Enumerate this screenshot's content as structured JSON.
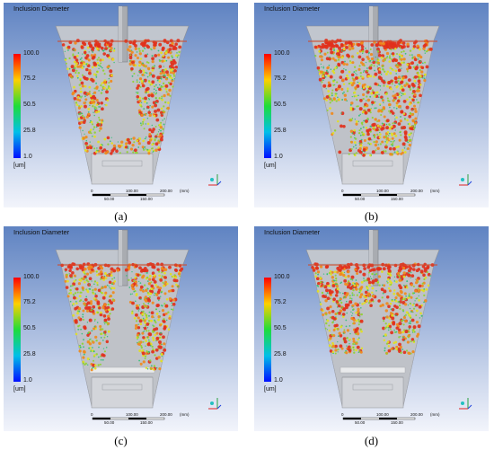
{
  "legend": {
    "title": "Inclusion Diameter",
    "ticks": [
      "100.0",
      "75.2",
      "50.5",
      "25.8",
      "1.0"
    ],
    "unit": "[um]"
  },
  "scalebar": {
    "top_labels": [
      "0",
      "100.00",
      "200.00",
      "(mm)"
    ],
    "bottom_labels": [
      "50.00",
      "150.00"
    ]
  },
  "panels": [
    {
      "caption": "(a)",
      "pattern": "split"
    },
    {
      "caption": "(b)",
      "pattern": "right"
    },
    {
      "caption": "(c)",
      "pattern": "split-full"
    },
    {
      "caption": "(d)",
      "pattern": "top"
    }
  ],
  "colors": {
    "background_top": "#5f83c2",
    "background_bottom": "#f2f4fb",
    "vessel": "#c9ccd2",
    "particle_large": "#e03a1d",
    "particle_mid": "#e5e01c",
    "particle_small": "#33c46a"
  }
}
